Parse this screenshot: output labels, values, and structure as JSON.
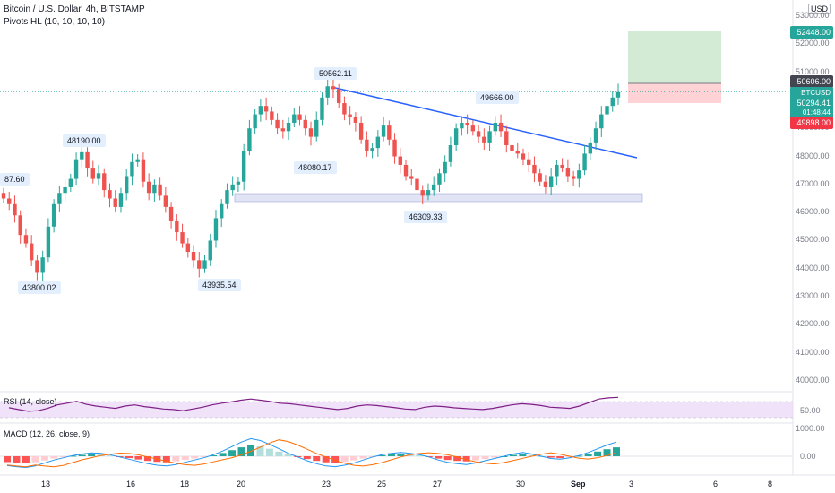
{
  "header": {
    "title": "Bitcoin / U.S. Dollar, 4h, BITSTAMP",
    "indicator": "Pivots HL (10, 10, 10, 10)",
    "currency": "USD"
  },
  "price_axis": [
    "53000.00",
    "52000.00",
    "51000.00",
    "50000.00",
    "49000.00",
    "48000.00",
    "47000.00",
    "46000.00",
    "45000.00",
    "44000.00",
    "43000.00",
    "42000.00",
    "41000.00",
    "40000.00"
  ],
  "price_tags": {
    "target": "52448.00",
    "entry": "50606.00",
    "symbol": "BTCUSD",
    "last": "50294.41",
    "countdown": "01:48:44",
    "stop": "49898.00"
  },
  "pivots": {
    "p1": "87.60",
    "p2": "48190.00",
    "p3": "43800.02",
    "p4": "43935.54",
    "p5": "50562.11",
    "p6": "48080.17",
    "p7": "46309.33",
    "p8": "49666.00"
  },
  "rsi": {
    "label": "RSI (14, close)",
    "axis": "50.00"
  },
  "macd": {
    "label": "MACD (12, 26, close, 9)",
    "axis_top": "1000.00",
    "axis_zero": "0.00"
  },
  "time_axis": [
    "13",
    "16",
    "18",
    "20",
    "23",
    "25",
    "27",
    "30",
    "Sep",
    "3",
    "6",
    "8"
  ],
  "chart_data": {
    "type": "candlestick",
    "ylim": [
      39500,
      53500
    ],
    "candles_close": [
      46500,
      46300,
      45900,
      45200,
      44900,
      44300,
      43850,
      44400,
      45500,
      46300,
      46700,
      46900,
      47200,
      47900,
      48150,
      47600,
      47200,
      47400,
      46800,
      46500,
      46200,
      46700,
      47300,
      47800,
      47900,
      47100,
      46700,
      47000,
      46600,
      46200,
      45700,
      45300,
      44900,
      44600,
      44300,
      44000,
      44300,
      45000,
      45800,
      46300,
      46800,
      47000,
      47100,
      48200,
      49000,
      49500,
      49800,
      49600,
      49300,
      49000,
      48900,
      49200,
      49500,
      49300,
      49000,
      48700,
      49300,
      50100,
      50500,
      50400,
      49900,
      49500,
      49400,
      49200,
      48600,
      48200,
      48300,
      48700,
      49100,
      48600,
      48000,
      47700,
      47300,
      47200,
      46800,
      46600,
      46800,
      47000,
      47400,
      47800,
      48400,
      49000,
      49200,
      49100,
      48900,
      48700,
      48500,
      48900,
      49200,
      48900,
      48400,
      48200,
      48100,
      47900,
      47700,
      47400,
      47100,
      46900,
      47300,
      47700,
      47600,
      47300,
      47200,
      47500,
      48100,
      48500,
      49000,
      49500,
      49800,
      50100,
      50294
    ],
    "rsi": [
      47,
      44,
      41,
      42,
      46,
      52,
      55,
      58,
      53,
      50,
      48,
      46,
      50,
      52,
      49,
      47,
      45,
      44,
      42,
      45,
      48,
      52,
      55,
      57,
      60,
      62,
      60,
      58,
      55,
      54,
      52,
      50,
      48,
      46,
      44,
      46,
      50,
      52,
      51,
      49,
      47,
      45,
      44,
      48,
      50,
      49,
      47,
      46,
      45,
      44,
      46,
      49,
      52,
      54,
      53,
      51,
      48,
      47,
      46,
      50,
      56,
      62,
      64,
      65
    ],
    "macd_hist": [
      -250,
      -280,
      -300,
      -260,
      -180,
      -100,
      -40,
      20,
      60,
      90,
      80,
      40,
      -20,
      -80,
      -140,
      -200,
      -240,
      -260,
      -220,
      -160,
      -100,
      -40,
      40,
      140,
      260,
      380,
      470,
      420,
      320,
      200,
      80,
      -20,
      -120,
      -200,
      -260,
      -280,
      -240,
      -180,
      -100,
      -20,
      40,
      80,
      100,
      80,
      40,
      -20,
      -100,
      -160,
      -200,
      -220,
      -180,
      -120,
      -60,
      0,
      60,
      100,
      60,
      0,
      -60,
      -80,
      -40,
      20,
      100,
      200,
      300,
      380
    ]
  }
}
